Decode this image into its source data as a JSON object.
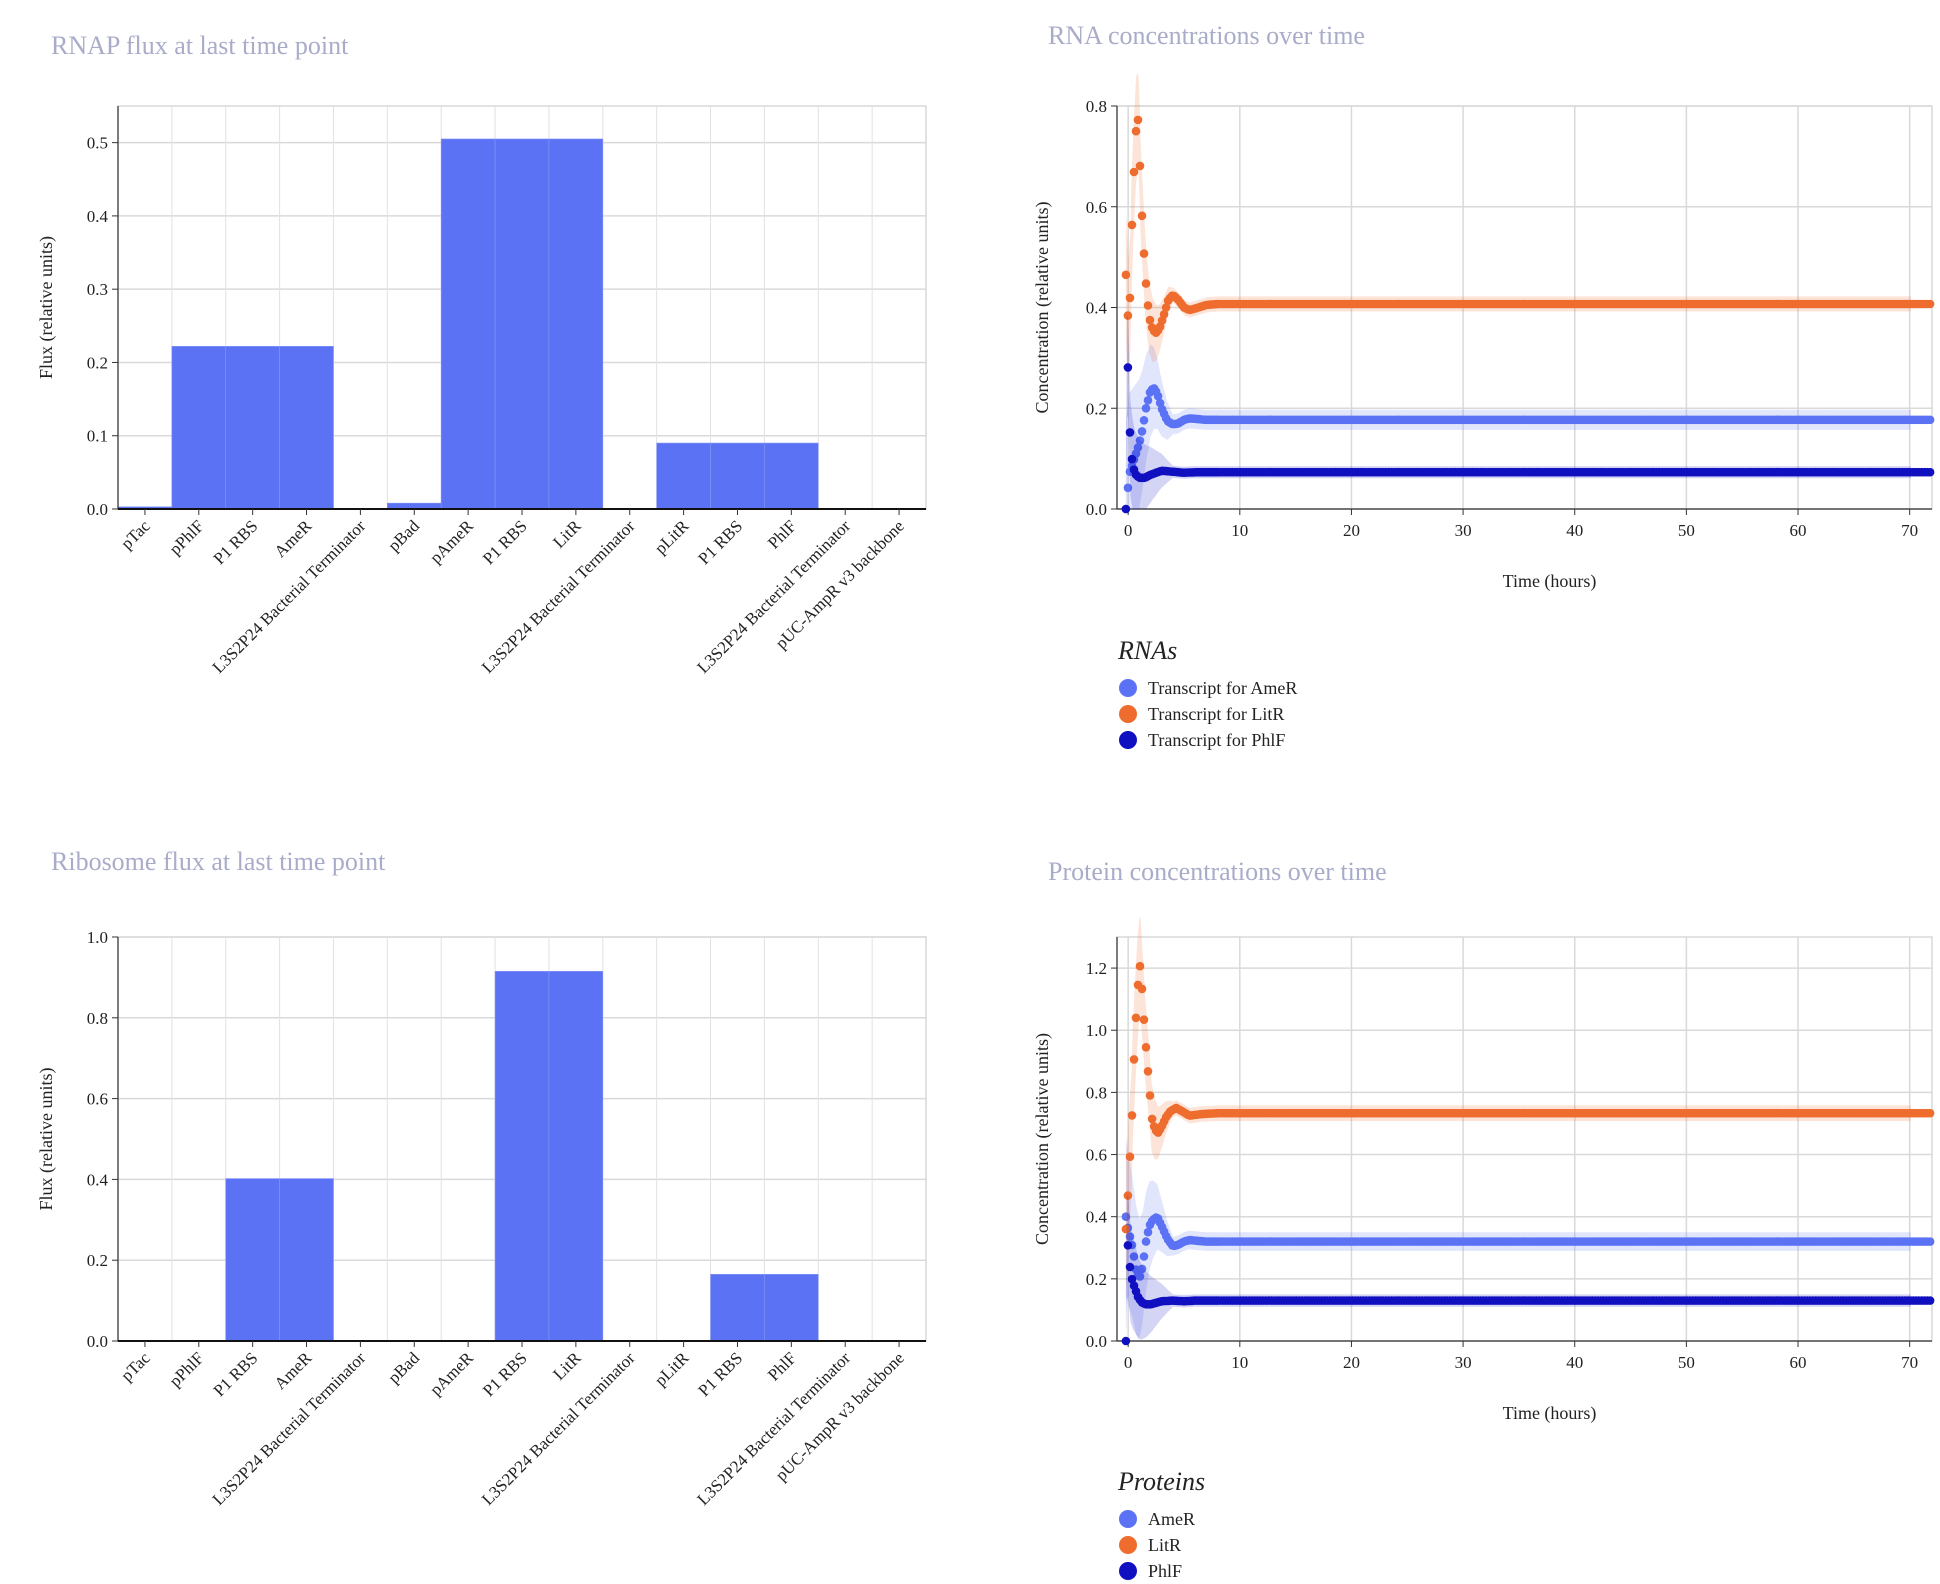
{
  "chart_data": [
    {
      "id": "rnap",
      "type": "bar",
      "title": "RNAP flux at last time point",
      "ylabel": "Flux (relative units)",
      "ylim": [
        0,
        0.55
      ],
      "yticks": [
        0.0,
        0.1,
        0.2,
        0.3,
        0.4,
        0.5
      ],
      "grid": true,
      "categories": [
        "pTac",
        "pPhlF",
        "P1 RBS",
        "AmeR",
        "L3S2P24 Bacterial Terminator",
        "pBad",
        "pAmeR",
        "P1 RBS",
        "LitR",
        "L3S2P24 Bacterial Terminator",
        "pLitR",
        "P1 RBS",
        "PhlF",
        "L3S2P24 Bacterial Terminator",
        "pUC-AmpR v3 backbone"
      ],
      "values": [
        0.003,
        0.222,
        0.222,
        0.222,
        0.0,
        0.008,
        0.505,
        0.505,
        0.505,
        0.0,
        0.09,
        0.09,
        0.09,
        0.0,
        0.0
      ],
      "color": "#5b72f5"
    },
    {
      "id": "ribosome",
      "type": "bar",
      "title": "Ribosome flux at last time point",
      "ylabel": "Flux (relative units)",
      "ylim": [
        0,
        1.0
      ],
      "yticks": [
        0.0,
        0.2,
        0.4,
        0.6,
        0.8,
        1.0
      ],
      "grid": true,
      "categories": [
        "pTac",
        "pPhlF",
        "P1 RBS",
        "AmeR",
        "L3S2P24 Bacterial Terminator",
        "pBad",
        "pAmeR",
        "P1 RBS",
        "LitR",
        "L3S2P24 Bacterial Terminator",
        "pLitR",
        "P1 RBS",
        "PhlF",
        "L3S2P24 Bacterial Terminator",
        "pUC-AmpR v3 backbone"
      ],
      "values": [
        0.0,
        0.0,
        0.402,
        0.402,
        0.0,
        0.0,
        0.0,
        0.915,
        0.915,
        0.0,
        0.0,
        0.165,
        0.165,
        0.0,
        0.0
      ],
      "color": "#5b72f5"
    },
    {
      "id": "rna",
      "type": "scatter",
      "title": "RNA concentrations over time",
      "xlabel": "Time (hours)",
      "ylabel": "Concentration (relative units)",
      "xlim": [
        -1,
        72
      ],
      "ylim": [
        0,
        0.8
      ],
      "xticks": [
        0,
        10,
        20,
        30,
        40,
        50,
        60,
        70
      ],
      "yticks": [
        0.0,
        0.2,
        0.4,
        0.6,
        0.8
      ],
      "grid": true,
      "legend_title": "RNAs",
      "legend_position": "bottom-left",
      "series": [
        {
          "name": "Transcript for AmeR",
          "color": "#5b72f5",
          "band": 0.02,
          "points": [
            [
              -0.2,
              0.0
            ],
            [
              0.1,
              0.07
            ],
            [
              0.4,
              0.09
            ],
            [
              0.7,
              0.11
            ],
            [
              1.0,
              0.13
            ],
            [
              1.3,
              0.16
            ],
            [
              1.6,
              0.2
            ],
            [
              2.0,
              0.235
            ],
            [
              2.3,
              0.24
            ],
            [
              2.6,
              0.23
            ],
            [
              3.0,
              0.2
            ],
            [
              3.5,
              0.175
            ],
            [
              4.0,
              0.168
            ],
            [
              4.5,
              0.17
            ],
            [
              5.0,
              0.177
            ],
            [
              5.5,
              0.18
            ],
            [
              6.0,
              0.179
            ],
            [
              7.0,
              0.177
            ],
            [
              72,
              0.177
            ]
          ]
        },
        {
          "name": "Transcript for LitR",
          "color": "#ee6c2d",
          "band": 0.015,
          "points": [
            [
              -0.2,
              0.465
            ],
            [
              0.0,
              0.375
            ],
            [
              0.2,
              0.43
            ],
            [
              0.3,
              0.54
            ],
            [
              0.5,
              0.66
            ],
            [
              0.7,
              0.75
            ],
            [
              0.9,
              0.775
            ],
            [
              1.0,
              0.735
            ],
            [
              1.1,
              0.645
            ],
            [
              1.3,
              0.555
            ],
            [
              1.5,
              0.475
            ],
            [
              1.7,
              0.42
            ],
            [
              1.9,
              0.38
            ],
            [
              2.2,
              0.355
            ],
            [
              2.5,
              0.35
            ],
            [
              2.8,
              0.358
            ],
            [
              3.2,
              0.385
            ],
            [
              3.6,
              0.415
            ],
            [
              4.0,
              0.425
            ],
            [
              4.5,
              0.415
            ],
            [
              5.0,
              0.4
            ],
            [
              5.5,
              0.395
            ],
            [
              6.0,
              0.398
            ],
            [
              7.0,
              0.405
            ],
            [
              8.0,
              0.407
            ],
            [
              72,
              0.407
            ]
          ]
        },
        {
          "name": "Transcript for PhlF",
          "color": "#1010c0",
          "band": 0.012,
          "points": [
            [
              -0.2,
              0.0
            ],
            [
              -0.1,
              0.285
            ],
            [
              0.0,
              0.28
            ],
            [
              0.2,
              0.12
            ],
            [
              0.4,
              0.09
            ],
            [
              0.6,
              0.07
            ],
            [
              1.0,
              0.062
            ],
            [
              1.5,
              0.062
            ],
            [
              2.0,
              0.068
            ],
            [
              3.0,
              0.076
            ],
            [
              4.0,
              0.074
            ],
            [
              5.0,
              0.072
            ],
            [
              6.0,
              0.073
            ],
            [
              72,
              0.073
            ]
          ]
        }
      ]
    },
    {
      "id": "protein",
      "type": "scatter",
      "title": "Protein concentrations over time",
      "xlabel": "Time (hours)",
      "ylabel": "Concentration (relative units)",
      "xlim": [
        -1,
        72
      ],
      "ylim": [
        0,
        1.3
      ],
      "xticks": [
        0,
        10,
        20,
        30,
        40,
        50,
        60,
        70
      ],
      "yticks": [
        0.0,
        0.2,
        0.4,
        0.6,
        0.8,
        1.0,
        1.2
      ],
      "grid": true,
      "legend_title": "Proteins",
      "legend_position": "bottom-left",
      "series": [
        {
          "name": "AmeR",
          "color": "#5b72f5",
          "band": 0.03,
          "points": [
            [
              -0.2,
              0.4
            ],
            [
              0.0,
              0.36
            ],
            [
              0.2,
              0.33
            ],
            [
              0.4,
              0.3
            ],
            [
              0.7,
              0.23
            ],
            [
              1.0,
              0.2
            ],
            [
              1.3,
              0.24
            ],
            [
              1.6,
              0.32
            ],
            [
              1.9,
              0.37
            ],
            [
              2.2,
              0.39
            ],
            [
              2.6,
              0.4
            ],
            [
              3.0,
              0.37
            ],
            [
              3.5,
              0.33
            ],
            [
              4.0,
              0.305
            ],
            [
              4.5,
              0.31
            ],
            [
              5.0,
              0.32
            ],
            [
              5.5,
              0.325
            ],
            [
              6.0,
              0.323
            ],
            [
              7.0,
              0.32
            ],
            [
              72,
              0.32
            ]
          ]
        },
        {
          "name": "LitR",
          "color": "#ee6c2d",
          "band": 0.025,
          "points": [
            [
              -0.2,
              0.36
            ],
            [
              0.0,
              0.48
            ],
            [
              0.1,
              0.56
            ],
            [
              0.3,
              0.67
            ],
            [
              0.4,
              0.81
            ],
            [
              0.6,
              0.97
            ],
            [
              0.8,
              1.11
            ],
            [
              1.0,
              1.2
            ],
            [
              1.1,
              1.21
            ],
            [
              1.3,
              1.1
            ],
            [
              1.5,
              0.99
            ],
            [
              1.7,
              0.9
            ],
            [
              1.9,
              0.82
            ],
            [
              2.1,
              0.72
            ],
            [
              2.4,
              0.68
            ],
            [
              2.7,
              0.67
            ],
            [
              3.0,
              0.69
            ],
            [
              3.4,
              0.72
            ],
            [
              3.8,
              0.74
            ],
            [
              4.3,
              0.75
            ],
            [
              4.8,
              0.74
            ],
            [
              5.5,
              0.725
            ],
            [
              6.5,
              0.73
            ],
            [
              8.0,
              0.733
            ],
            [
              72,
              0.733
            ]
          ]
        },
        {
          "name": "PhlF",
          "color": "#1010c0",
          "band": 0.02,
          "points": [
            [
              -0.2,
              0.0
            ],
            [
              -0.1,
              0.3
            ],
            [
              0.0,
              0.31
            ],
            [
              0.2,
              0.22
            ],
            [
              0.4,
              0.19
            ],
            [
              0.6,
              0.17
            ],
            [
              0.9,
              0.14
            ],
            [
              1.2,
              0.125
            ],
            [
              1.6,
              0.118
            ],
            [
              2.0,
              0.118
            ],
            [
              3.0,
              0.128
            ],
            [
              4.0,
              0.13
            ],
            [
              5.0,
              0.128
            ],
            [
              6.0,
              0.13
            ],
            [
              72,
              0.13
            ]
          ]
        }
      ]
    }
  ]
}
